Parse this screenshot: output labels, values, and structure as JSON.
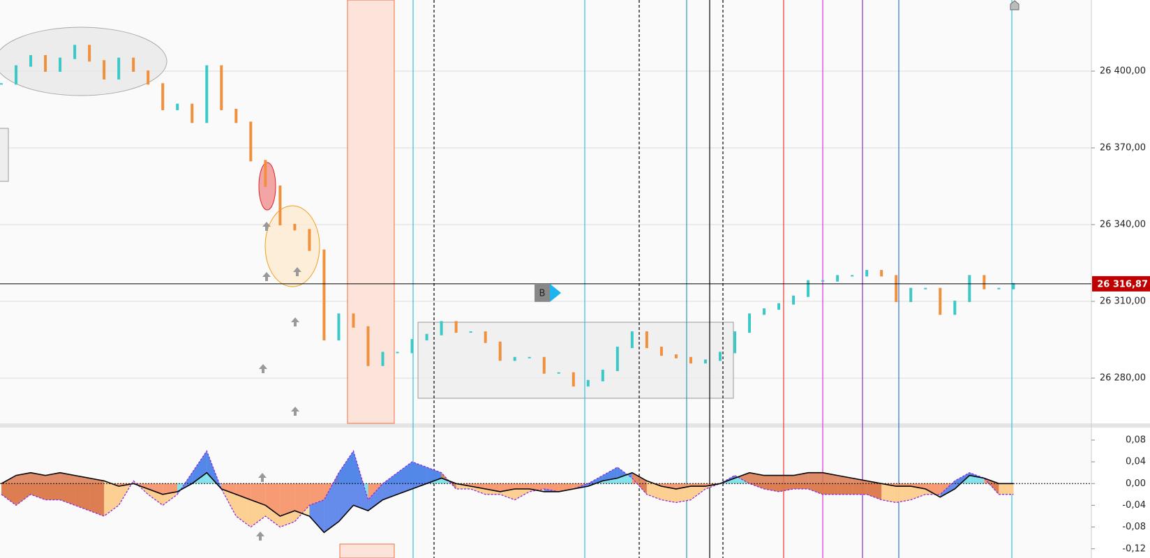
{
  "chart_data": [
    {
      "type": "bar-line",
      "color": "#3cc8c8",
      "down_color": "#f0903c",
      "ylim": [
        26262.3,
        26427.8
      ],
      "yticks": [
        {
          "value": 26280,
          "label": "26 280,00"
        },
        {
          "value": 26310,
          "label": "26 310,00"
        },
        {
          "value": 26340,
          "label": "26 340,00"
        },
        {
          "value": 26370,
          "label": "26 370,00"
        },
        {
          "value": 26400,
          "label": "26 400,00"
        }
      ],
      "grid": true,
      "last_price": {
        "value": 26316.87,
        "label": "26 316,87"
      },
      "marker": "B",
      "values": [
        26395,
        26402,
        26406,
        26400,
        26405,
        26410,
        26404,
        26397,
        26405,
        26400,
        26395,
        26385,
        26387,
        26380,
        26402,
        26385,
        26380,
        26365,
        26355,
        26340,
        26338,
        26330,
        26295,
        26305,
        26300,
        26285,
        26290,
        26290,
        26295,
        26297,
        26302,
        26298,
        26298,
        26294,
        26287,
        26288,
        26288,
        26282,
        26282,
        26277,
        26279,
        26283,
        26292,
        26298,
        26292,
        26289,
        26288,
        26286,
        26287,
        26290,
        26298,
        26305,
        26307,
        26309,
        26312,
        26318,
        26318,
        26320,
        26320,
        26322,
        26320,
        26310,
        26315,
        26315,
        26305,
        26310,
        26320,
        26315,
        26315,
        26316.87
      ]
    },
    {
      "type": "area",
      "ylim": [
        -0.137,
        0.103
      ],
      "yticks": [
        {
          "value": -0.12,
          "label": "-0,12"
        },
        {
          "value": -0.08,
          "label": "-0,08"
        },
        {
          "value": -0.04,
          "label": "-0,04"
        },
        {
          "value": 0,
          "label": "0,00"
        },
        {
          "value": 0.04,
          "label": "0,04"
        },
        {
          "value": 0.08,
          "label": "0,08"
        }
      ],
      "series": [
        {
          "color": "#000000",
          "values": [
            0,
            0.015,
            0.02,
            0.015,
            0.02,
            0.015,
            0.01,
            0.005,
            -0.005,
            0,
            -0.01,
            -0.02,
            -0.015,
            0,
            0.02,
            -0.01,
            -0.02,
            -0.03,
            -0.04,
            -0.06,
            -0.05,
            -0.06,
            -0.09,
            -0.07,
            -0.04,
            -0.05,
            -0.03,
            -0.02,
            -0.01,
            0,
            0.01,
            0,
            -0.005,
            -0.01,
            -0.015,
            -0.01,
            -0.01,
            -0.015,
            -0.015,
            -0.01,
            -0.005,
            0.005,
            0.01,
            0.02,
            0.005,
            -0.005,
            -0.01,
            -0.005,
            -0.005,
            0,
            0.01,
            0.02,
            0.015,
            0.015,
            0.015,
            0.02,
            0.02,
            0.015,
            0.01,
            0.005,
            0,
            -0.005,
            -0.005,
            -0.01,
            -0.025,
            -0.01,
            0.015,
            0.01,
            0,
            0
          ]
        },
        {
          "color": "#8a2be2",
          "values": [
            -0.02,
            -0.04,
            -0.02,
            -0.03,
            -0.03,
            -0.04,
            -0.05,
            -0.06,
            -0.04,
            0.005,
            -0.02,
            -0.04,
            -0.02,
            0.02,
            0.06,
            -0.01,
            -0.06,
            -0.08,
            -0.06,
            -0.08,
            -0.07,
            -0.04,
            -0.03,
            0.02,
            0.06,
            -0.03,
            0,
            0.02,
            0.04,
            0.03,
            0.02,
            -0.01,
            -0.01,
            -0.02,
            -0.02,
            -0.03,
            -0.015,
            -0.01,
            -0.015,
            -0.01,
            0,
            0.015,
            0.03,
            0.01,
            -0.02,
            -0.03,
            -0.035,
            -0.03,
            -0.01,
            0,
            0.015,
            0,
            -0.01,
            -0.015,
            -0.01,
            -0.01,
            -0.02,
            -0.02,
            -0.02,
            -0.02,
            -0.03,
            -0.035,
            -0.03,
            -0.02,
            -0.02,
            0.005,
            0.02,
            0.01,
            -0.02,
            -0.02
          ]
        }
      ]
    }
  ]
}
